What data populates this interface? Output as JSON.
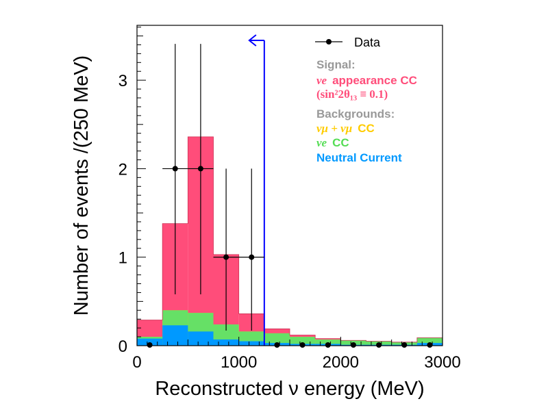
{
  "chart_data": {
    "type": "bar",
    "subtype": "stacked-histogram",
    "xlabel": "Reconstructed ν energy (MeV)",
    "ylabel": "Number of events /(250 MeV)",
    "xlim": [
      0,
      3000
    ],
    "ylim": [
      0,
      3.62
    ],
    "x_ticks": [
      0,
      1000,
      2000,
      3000
    ],
    "y_ticks": [
      0,
      1,
      2,
      3
    ],
    "bin_width": 250,
    "bin_edges": [
      0,
      250,
      500,
      750,
      1000,
      1250,
      1500,
      1750,
      2000,
      2250,
      2500,
      2750,
      3000
    ],
    "series": [
      {
        "name": "Neutral Current",
        "color": "#0099ff",
        "values": [
          0.08,
          0.23,
          0.16,
          0.07,
          0.05,
          0.03,
          0.02,
          0.02,
          0.01,
          0.01,
          0.01,
          0.03
        ]
      },
      {
        "name": "νe CC",
        "color": "#66e066",
        "values": [
          0.02,
          0.17,
          0.21,
          0.17,
          0.11,
          0.11,
          0.08,
          0.05,
          0.05,
          0.04,
          0.03,
          0.06
        ]
      },
      {
        "name": "νμ + ν̄μ CC",
        "color": "#ffcc00",
        "values": [
          0.0,
          0.0,
          0.0,
          0.0,
          0.0,
          0.0,
          0.0,
          0.0,
          0.0,
          0.0,
          0.0,
          0.0
        ]
      },
      {
        "name": "νe appearance CC",
        "color": "#ff4d7a",
        "values": [
          0.19,
          0.98,
          1.99,
          0.79,
          0.2,
          0.05,
          0.02,
          0.01,
          0.0,
          0.0,
          0.0,
          0.0
        ]
      }
    ],
    "data_points": {
      "name": "Data",
      "x": [
        125,
        375,
        625,
        875,
        1125,
        1375,
        1625,
        1875,
        2125,
        2375,
        2625,
        2875
      ],
      "y": [
        0,
        2,
        2,
        1,
        1,
        0,
        0,
        0,
        0,
        0,
        0,
        0
      ],
      "y_err_low": [
        0,
        1.42,
        1.42,
        0.83,
        0.83,
        0,
        0,
        0,
        0,
        0,
        0,
        0
      ],
      "y_err_high": [
        0,
        1.41,
        1.41,
        1.0,
        1.0,
        0,
        0,
        0,
        0,
        0,
        0,
        0
      ]
    },
    "cut_line": {
      "x": 1250,
      "y_top": 3.45,
      "arrow_direction": "left",
      "color": "#0000ff"
    },
    "legend": {
      "placement": "top-right",
      "data_label": "Data",
      "signal_header": "Signal:",
      "signal_label": "appearance CC",
      "signal_label_prefix": "νe",
      "signal_formula": "(sin²2θ₁₃ ≡ 0.1)",
      "bkg_header": "Backgrounds:",
      "bkg_numu_label": "CC",
      "bkg_numu_prefix": "νμ + νμ",
      "bkg_nue_label": "CC",
      "bkg_nue_prefix": "νe",
      "bkg_nc_label": "Neutral Current",
      "header_color": "#999999",
      "signal_color": "#ff4d7a",
      "numu_color": "#ffcc00",
      "nue_color": "#55dd55",
      "nc_color": "#0099ff"
    }
  }
}
